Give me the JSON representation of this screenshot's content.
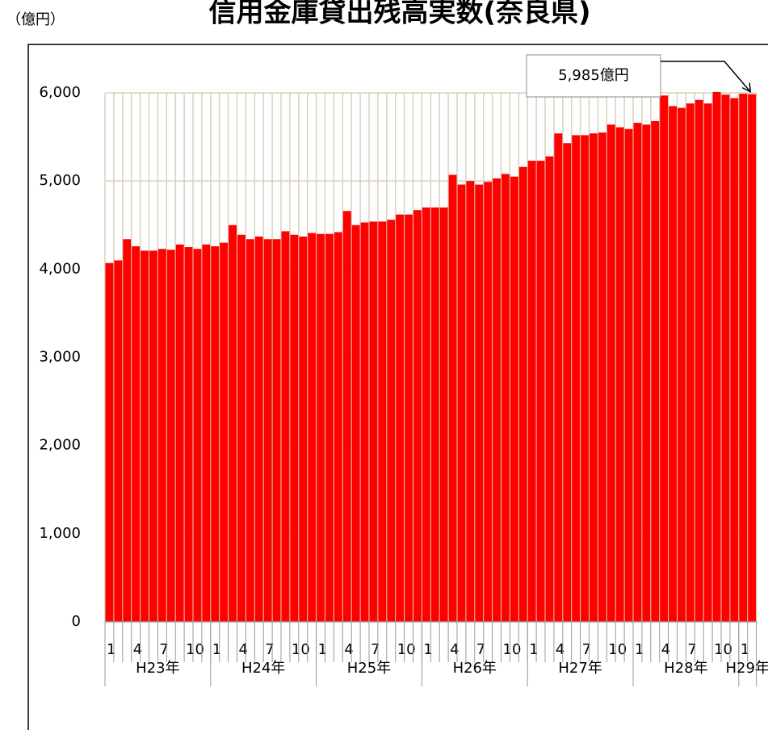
{
  "chart_data": {
    "type": "bar",
    "title": "信用金庫貸出残高実数(奈良県)",
    "y_unit": "（億円）",
    "annotation": "5,985億円",
    "color": "#ff0000",
    "grid": true,
    "ylim": [
      0,
      6000
    ],
    "yticks": [
      0,
      {
        "value": 1000,
        "label": "1,000"
      },
      {
        "value": 2000,
        "label": "2,000"
      },
      {
        "value": 3000,
        "label": "3,000"
      },
      {
        "value": 4000,
        "label": "4,000"
      },
      {
        "value": 5000,
        "label": "5,000"
      },
      {
        "value": 6000,
        "label": "6,000"
      }
    ],
    "groups": [
      "H23年",
      "H24年",
      "H25年",
      "H26年",
      "H27年",
      "H28年",
      "H29年"
    ],
    "categories": [
      "1",
      null,
      null,
      "4",
      null,
      null,
      "7",
      null,
      null,
      "10",
      null,
      null,
      "1",
      null,
      null,
      "4",
      null,
      null,
      "7",
      null,
      null,
      "10",
      null,
      null,
      "1",
      null,
      null,
      "4",
      null,
      null,
      "7",
      null,
      null,
      "10",
      null,
      null,
      "1",
      null,
      null,
      "4",
      null,
      null,
      "7",
      null,
      null,
      "10",
      null,
      null,
      "1",
      null,
      null,
      "4",
      null,
      null,
      "7",
      null,
      null,
      "10",
      null,
      null,
      "1",
      null,
      null,
      "4",
      null,
      null,
      "7",
      null,
      null,
      "10",
      null,
      null,
      "1",
      null
    ],
    "values": [
      4070,
      4100,
      4340,
      4260,
      4210,
      4210,
      4230,
      4220,
      4280,
      4250,
      4230,
      4280,
      4260,
      4300,
      4500,
      4390,
      4340,
      4370,
      4340,
      4340,
      4430,
      4390,
      4370,
      4410,
      4400,
      4400,
      4420,
      4660,
      4500,
      4530,
      4540,
      4540,
      4560,
      4620,
      4620,
      4670,
      4700,
      4700,
      4700,
      5070,
      4960,
      5000,
      4960,
      4990,
      5030,
      5080,
      5050,
      5160,
      5230,
      5230,
      5280,
      5540,
      5430,
      5520,
      5520,
      5540,
      5550,
      5640,
      5610,
      5590,
      5660,
      5640,
      5680,
      5970,
      5850,
      5830,
      5880,
      5920,
      5880,
      6010,
      5980,
      5940,
      5990,
      5985
    ]
  }
}
